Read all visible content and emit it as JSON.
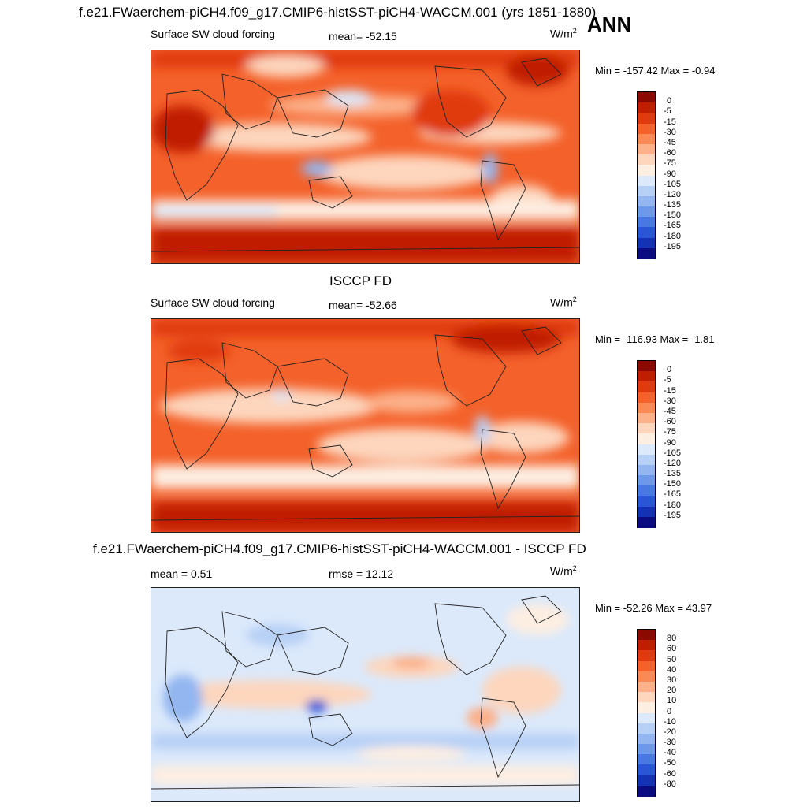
{
  "header": {
    "title": "f.e21.FWaerchem-piCH4.f09_g17.CMIP6-histSST-piCH4-WACCM.001 (yrs 1851-1880)",
    "season": "ANN"
  },
  "panels": [
    {
      "id": "model",
      "heading": "",
      "left_label": "Surface SW cloud forcing",
      "center_label": "mean= -52.15",
      "units_base": "W/m",
      "units_exp": "2",
      "minmax": "Min = -157.42 Max =  -0.94",
      "colorbar_labels": [
        "0",
        "-5",
        "-15",
        "-30",
        "-45",
        "-60",
        "-75",
        "-90",
        "-105",
        "-120",
        "-135",
        "-150",
        "-165",
        "-180",
        "-195"
      ],
      "colorbar_colors": [
        "#8b0a00",
        "#c01e00",
        "#e03b10",
        "#f4612a",
        "#f98a55",
        "#fcb18a",
        "#fdd6bd",
        "#fdeee2",
        "#dbe9fb",
        "#b7d0f6",
        "#93b6f0",
        "#6e98ea",
        "#4a78e2",
        "#2a55d4",
        "#1432b4",
        "#0a0c80"
      ]
    },
    {
      "id": "obs",
      "heading": "ISCCP FD",
      "left_label": "Surface SW cloud forcing",
      "center_label": "mean= -52.66",
      "units_base": "W/m",
      "units_exp": "2",
      "minmax": "Min = -116.93 Max =  -1.81",
      "colorbar_labels": [
        "0",
        "-5",
        "-15",
        "-30",
        "-45",
        "-60",
        "-75",
        "-90",
        "-105",
        "-120",
        "-135",
        "-150",
        "-165",
        "-180",
        "-195"
      ],
      "colorbar_colors": [
        "#8b0a00",
        "#c01e00",
        "#e03b10",
        "#f4612a",
        "#f98a55",
        "#fcb18a",
        "#fdd6bd",
        "#fdeee2",
        "#dbe9fb",
        "#b7d0f6",
        "#93b6f0",
        "#6e98ea",
        "#4a78e2",
        "#2a55d4",
        "#1432b4",
        "#0a0c80"
      ]
    },
    {
      "id": "diff",
      "heading": "f.e21.FWaerchem-piCH4.f09_g17.CMIP6-histSST-piCH4-WACCM.001 - ISCCP FD",
      "left_label": "mean =   0.51",
      "center_label": "rmse =  12.12",
      "units_base": "W/m",
      "units_exp": "2",
      "minmax": "Min = -52.26 Max =  43.97",
      "colorbar_labels": [
        "80",
        "60",
        "50",
        "40",
        "30",
        "20",
        "10",
        "0",
        "-10",
        "-20",
        "-30",
        "-40",
        "-50",
        "-60",
        "-80"
      ],
      "colorbar_colors": [
        "#8b0a00",
        "#c01e00",
        "#e03b10",
        "#f4612a",
        "#f98a55",
        "#fcb18a",
        "#fdd6bd",
        "#fdeee2",
        "#dbe9fb",
        "#b7d0f6",
        "#93b6f0",
        "#6e98ea",
        "#4a78e2",
        "#2a55d4",
        "#1432b4",
        "#0a0c80"
      ]
    }
  ]
}
